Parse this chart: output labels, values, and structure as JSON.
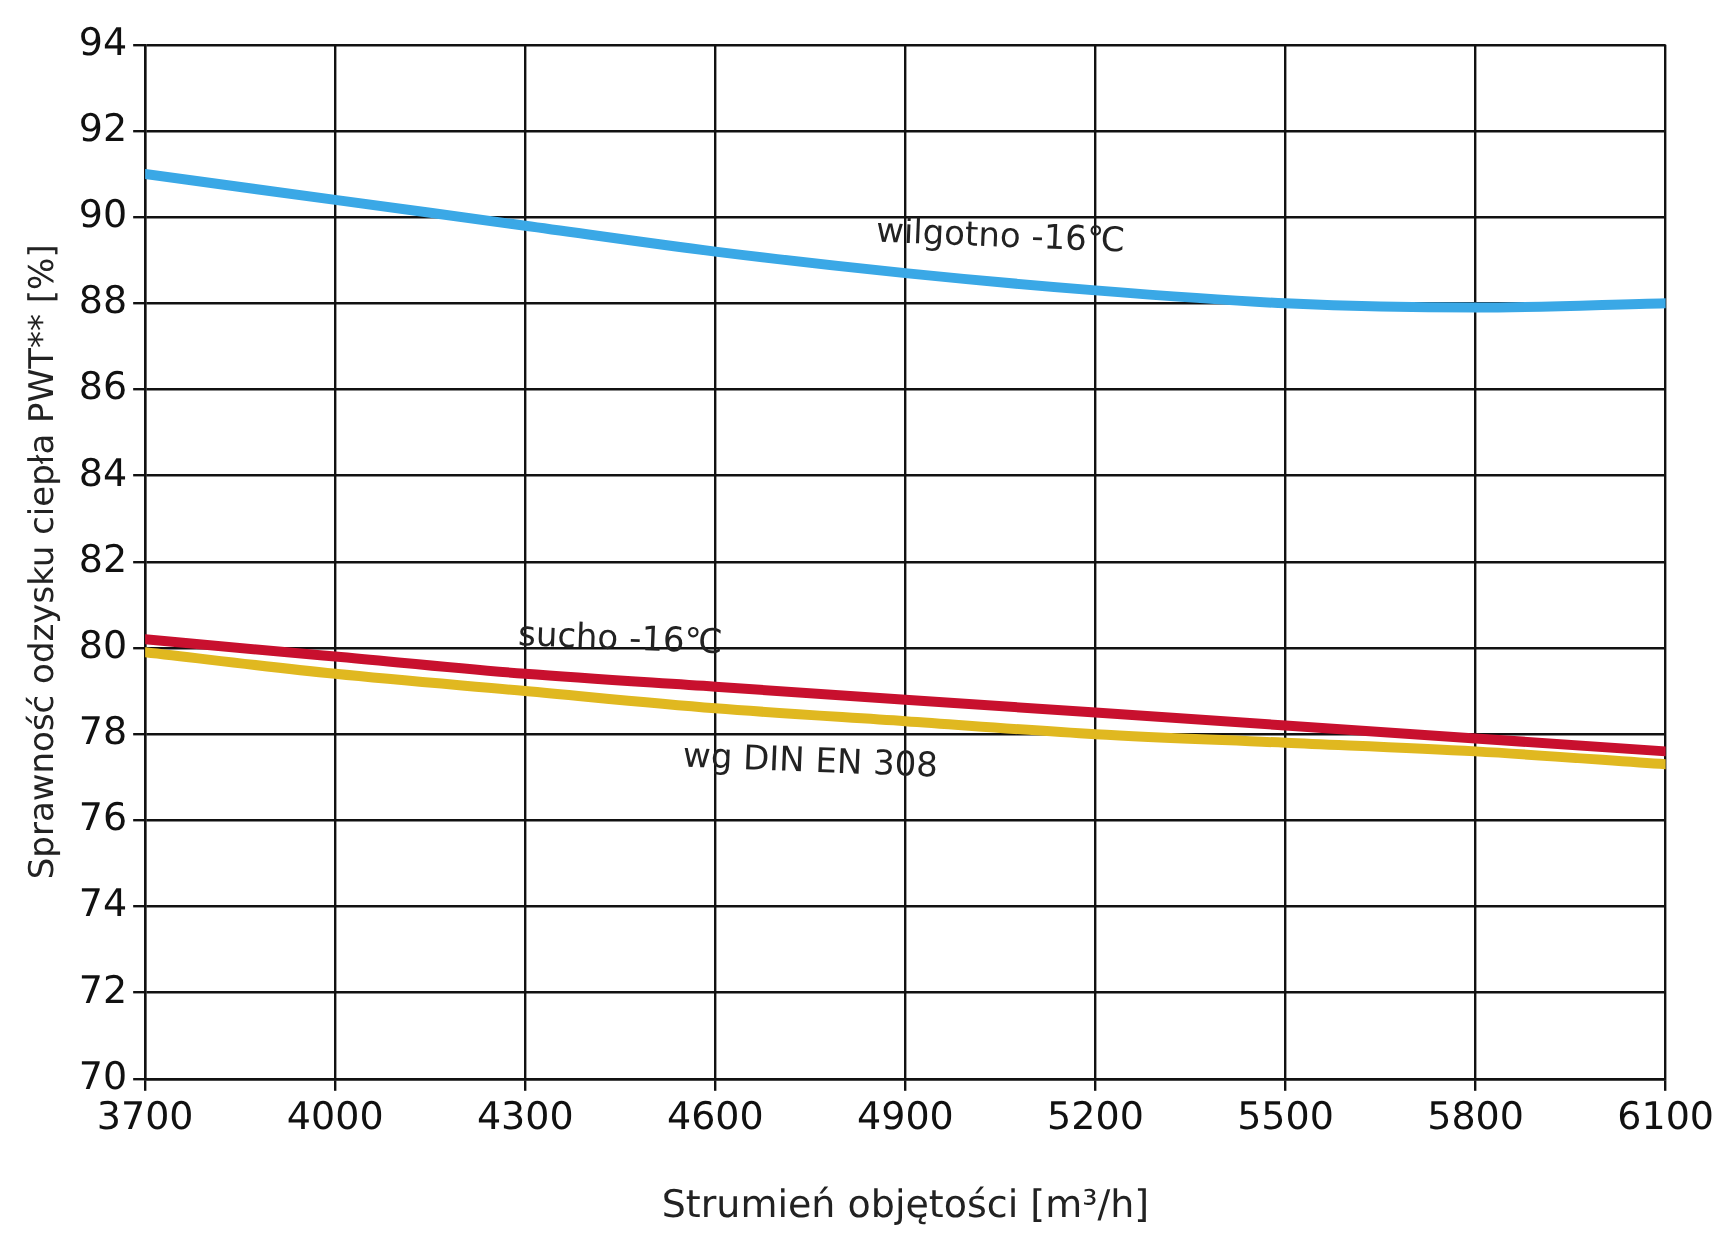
{
  "chart_data": {
    "type": "line",
    "xlabel": "Strumień objętości [m³/h]",
    "ylabel": "Sprawność odzysku ciepła PWT** [%]",
    "x": [
      3700,
      4000,
      4300,
      4600,
      4900,
      5200,
      5500,
      5800,
      6100
    ],
    "series": [
      {
        "name": "wilgotno -16℃",
        "color": "#3aa8e6",
        "values": [
          91.0,
          90.4,
          89.8,
          89.2,
          88.7,
          88.3,
          88.0,
          87.9,
          88.0
        ]
      },
      {
        "name": "sucho -16℃",
        "color": "#c8102e",
        "values": [
          80.2,
          79.8,
          79.4,
          79.1,
          78.8,
          78.5,
          78.2,
          77.9,
          77.6
        ]
      },
      {
        "name": "wg DIN EN 308",
        "color": "#e0b820",
        "values": [
          79.9,
          79.4,
          79.0,
          78.6,
          78.3,
          78.0,
          77.8,
          77.6,
          77.3
        ]
      }
    ],
    "xlim": [
      3700,
      6100
    ],
    "xticks": [
      3700,
      4000,
      4300,
      4600,
      4900,
      5200,
      5500,
      5800,
      6100
    ],
    "ylim": [
      70,
      94
    ],
    "yticks": [
      70,
      72,
      74,
      76,
      78,
      80,
      82,
      84,
      86,
      88,
      90,
      92,
      94
    ],
    "grid": true,
    "legend": false,
    "marker": "none",
    "line_style": "solid"
  }
}
